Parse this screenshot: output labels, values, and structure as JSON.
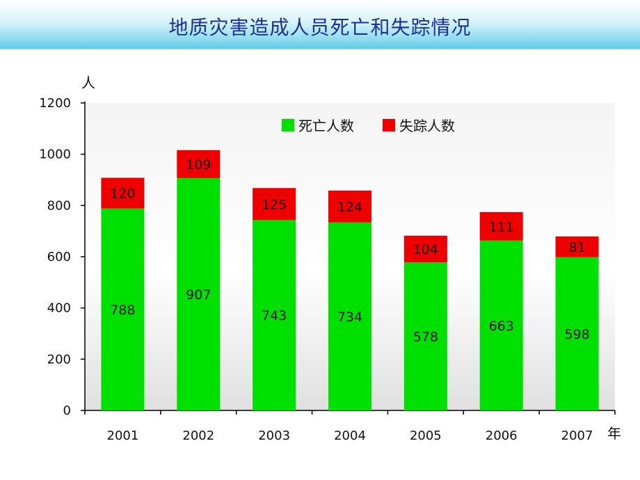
{
  "title": "地质灾害造成人员死亡和失踪情况",
  "colors": {
    "deaths": "#00e000",
    "missing": "#ee0000",
    "plot_bg_light": "#ffffff",
    "plot_bg_dark": "#d9d9d9"
  },
  "chart_data": {
    "type": "bar",
    "stacked": true,
    "categories": [
      "2001",
      "2002",
      "2003",
      "2004",
      "2005",
      "2006",
      "2007"
    ],
    "series": [
      {
        "name": "死亡人数",
        "values": [
          788,
          907,
          743,
          734,
          578,
          663,
          598
        ]
      },
      {
        "name": "失踪人数",
        "values": [
          120,
          109,
          125,
          124,
          104,
          111,
          81
        ]
      }
    ],
    "title": "",
    "ylabel": "人",
    "xlabel": "年",
    "ylim": [
      0,
      1200
    ],
    "yticks": [
      0,
      200,
      400,
      600,
      800,
      1000,
      1200
    ],
    "grid": false,
    "legend": "top-right"
  }
}
